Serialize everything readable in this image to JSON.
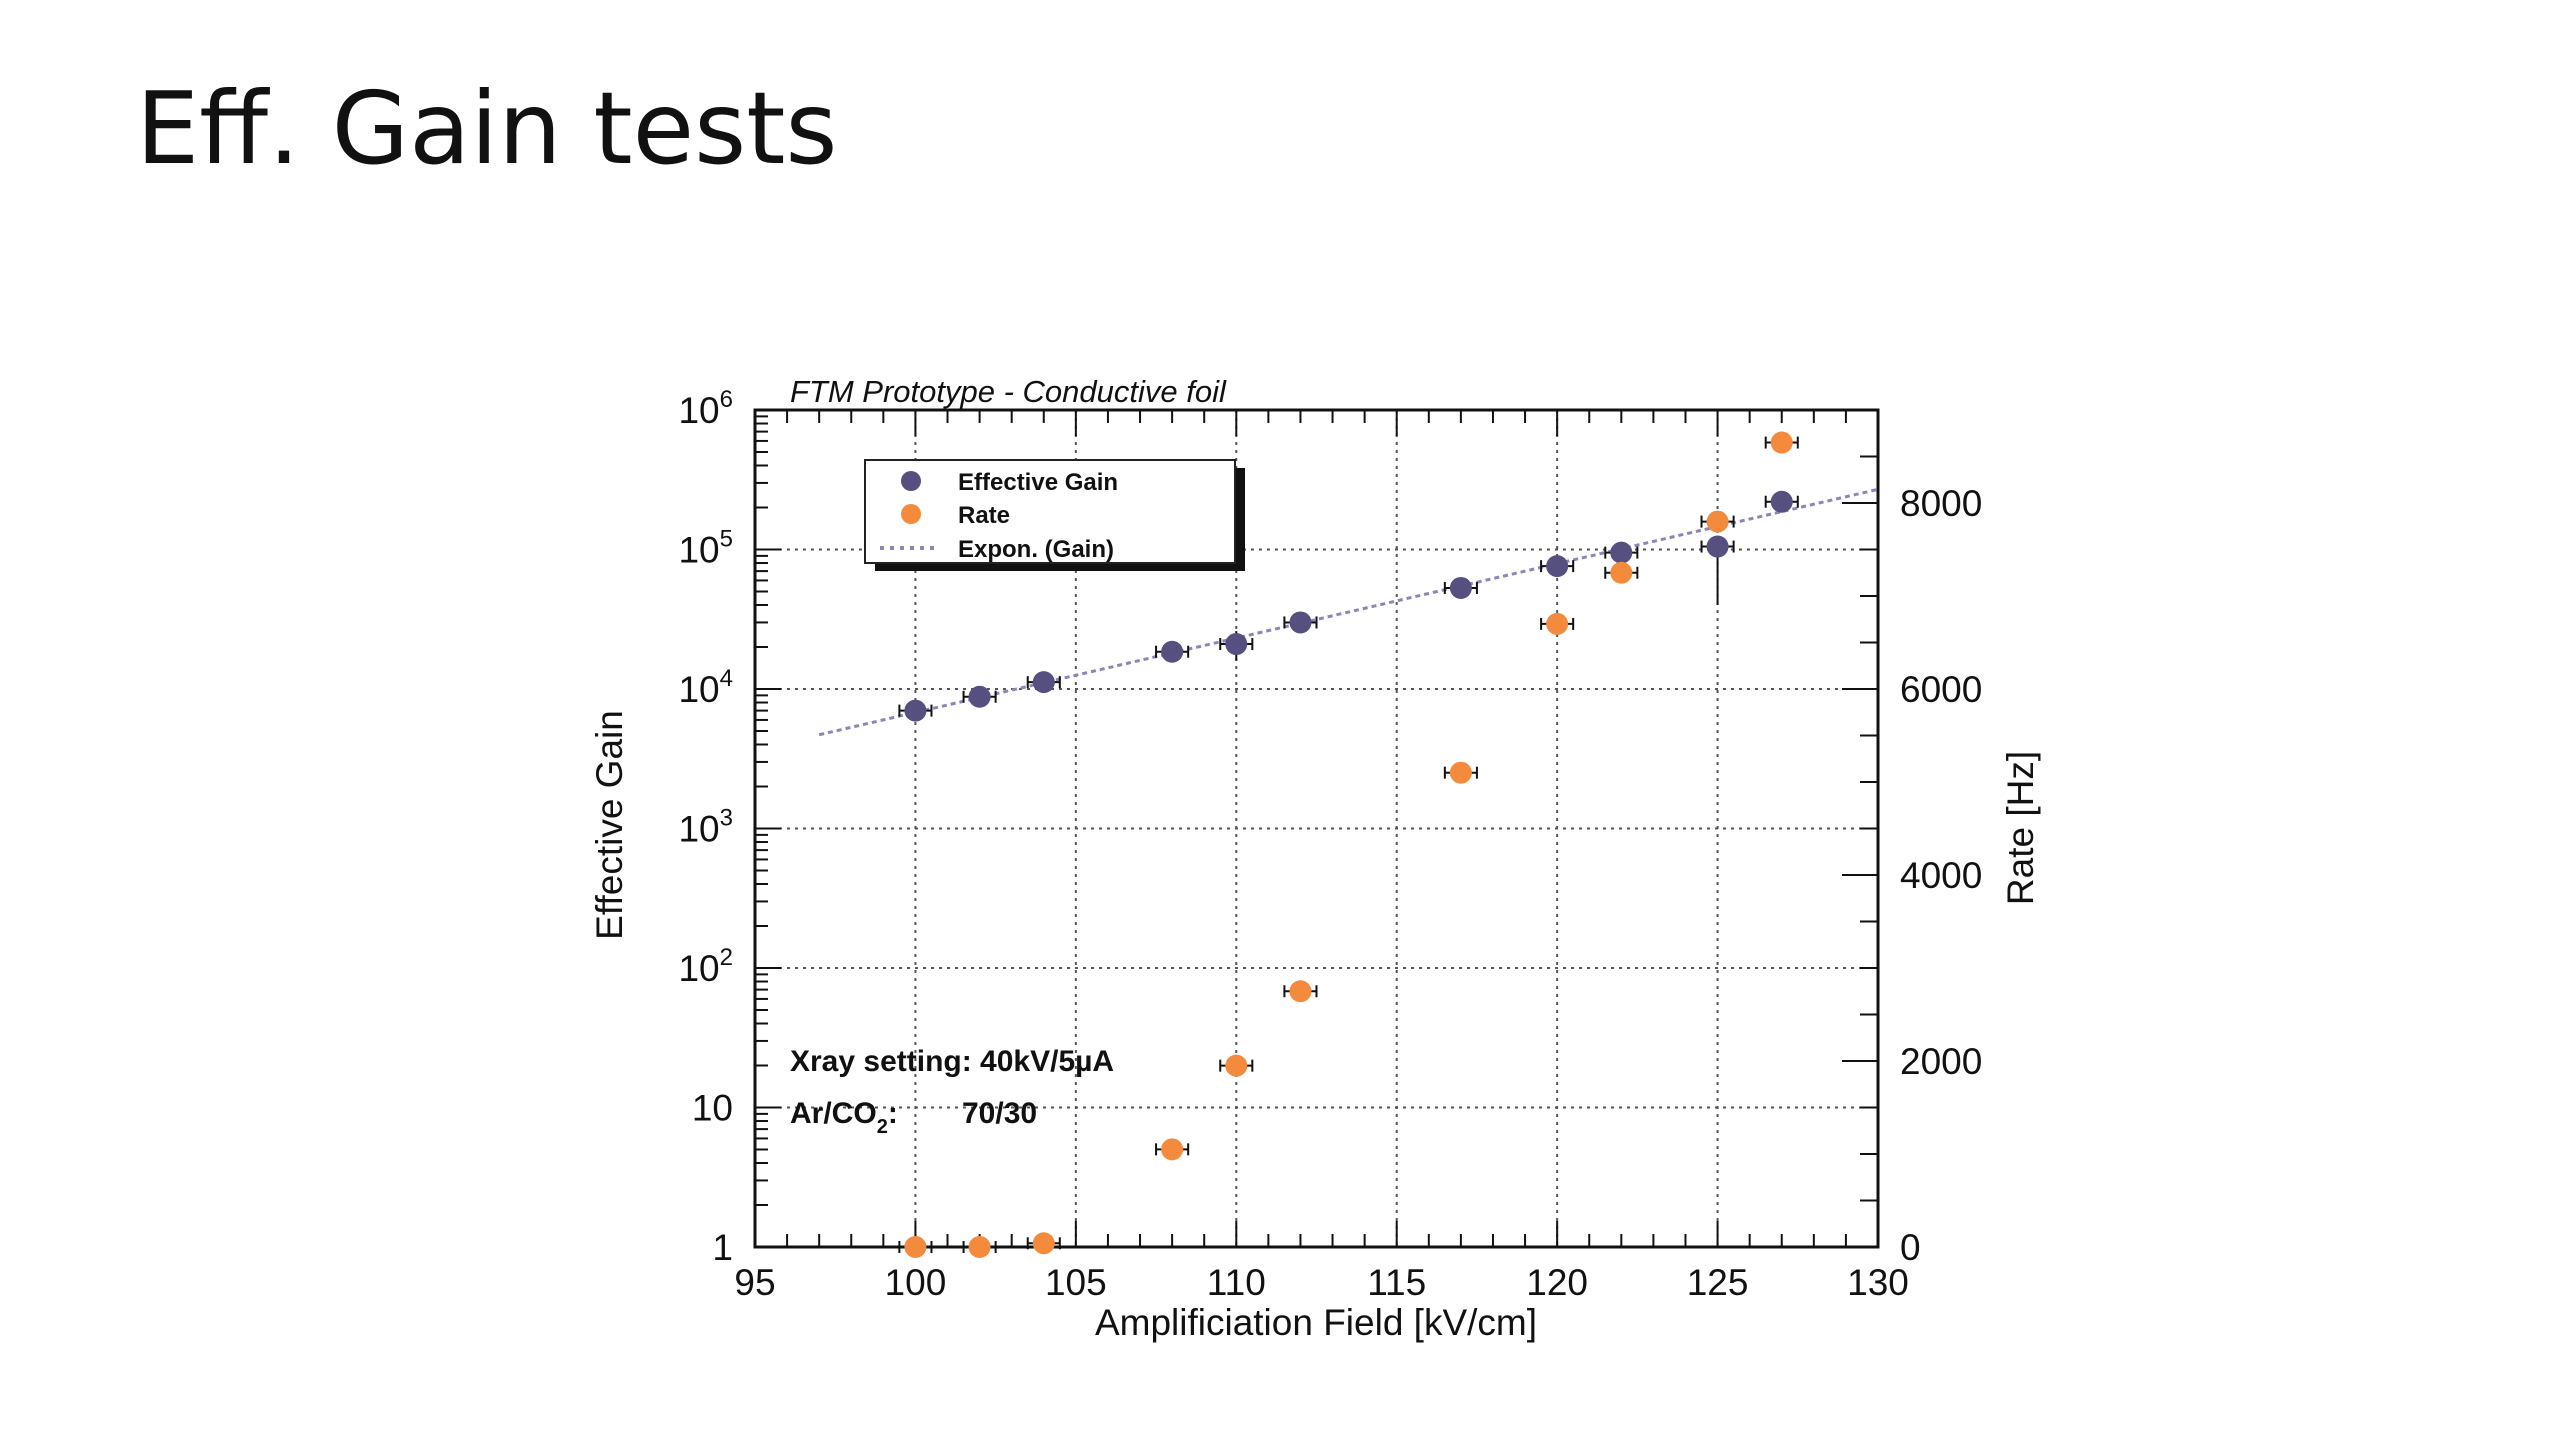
{
  "slide": {
    "title": "Eff. Gain tests"
  },
  "chart_data": {
    "type": "scatter",
    "title": "FTM Prototype - Conductive foil",
    "xlabel": "Amplificiation Field [kV/cm]",
    "ylabel": "Effective Gain",
    "y2label": "Rate [Hz]",
    "xlim": [
      95,
      130
    ],
    "ylim": [
      1,
      1000000
    ],
    "y2lim": [
      0,
      9000
    ],
    "yscale": "log",
    "y2scale": "linear",
    "grid": true,
    "legend_position": "top-left",
    "x_ticks": [
      "95",
      "100",
      "105",
      "110",
      "115",
      "120",
      "125",
      "130"
    ],
    "y_ticks": [
      {
        "value": 1,
        "base": "1",
        "exp": ""
      },
      {
        "value": 10,
        "base": "10",
        "exp": ""
      },
      {
        "value": 100,
        "base": "10",
        "exp": "2"
      },
      {
        "value": 1000,
        "base": "10",
        "exp": "3"
      },
      {
        "value": 10000,
        "base": "10",
        "exp": "4"
      },
      {
        "value": 100000,
        "base": "10",
        "exp": "5"
      },
      {
        "value": 1000000,
        "base": "10",
        "exp": "6"
      }
    ],
    "y2_ticks": [
      "0",
      "2000",
      "4000",
      "6000",
      "8000"
    ],
    "series": [
      {
        "name": "Effective Gain",
        "color": "#55507f",
        "axis": "left",
        "x": [
          100,
          102,
          104,
          108,
          110,
          112,
          117,
          120,
          122,
          125,
          127
        ],
        "y": [
          7000,
          8800,
          11200,
          18500,
          21000,
          30000,
          53000,
          76000,
          95000,
          105000,
          220000
        ],
        "y_err_low": [
          0,
          0,
          0,
          0,
          5000,
          0,
          0,
          0,
          0,
          65000,
          0
        ],
        "y_err_high": [
          0,
          0,
          0,
          0,
          5000,
          0,
          0,
          0,
          0,
          0,
          0
        ],
        "x_err": [
          0.5,
          0.5,
          0.5,
          0.5,
          0.5,
          0.5,
          0.5,
          0.5,
          0.5,
          0.5,
          0.5
        ]
      },
      {
        "name": "Rate",
        "color": "#f48a3c",
        "axis": "right",
        "x": [
          100,
          102,
          104,
          108,
          110,
          112,
          117,
          120,
          122,
          125,
          127
        ],
        "y": [
          0,
          0,
          40,
          1050,
          1950,
          2750,
          5100,
          6700,
          7250,
          7800,
          8650
        ],
        "x_err": [
          0.5,
          0.5,
          0.5,
          0.5,
          0.5,
          0.5,
          0.5,
          0.5,
          0.5,
          0.5,
          0.5
        ]
      }
    ],
    "fit": {
      "name": "Expon. (Gain)",
      "color": "#8a86b8",
      "x_start": 97,
      "x_end": 130,
      "y_start": 4700,
      "y_end": 270000
    },
    "annotations": {
      "xray": "Xray setting: 40kV/5µA",
      "gas_label_main": "Ar/CO",
      "gas_label_sub": "2",
      "gas_label_colon": ":",
      "gas_value": "70/30"
    }
  }
}
